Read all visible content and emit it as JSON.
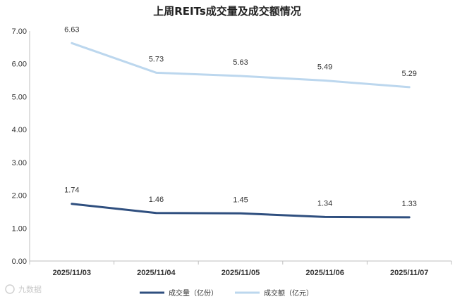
{
  "chart_data": {
    "type": "line",
    "title": "上周REITs成交量及成交额情况",
    "categories": [
      "2025/11/03",
      "2025/11/04",
      "2025/11/05",
      "2025/11/06",
      "2025/11/07"
    ],
    "series": [
      {
        "name": "成交量（亿份）",
        "values": [
          1.74,
          1.46,
          1.45,
          1.34,
          1.33
        ],
        "color": "#2f4f7f"
      },
      {
        "name": "成交额（亿元）",
        "values": [
          6.63,
          5.73,
          5.63,
          5.49,
          5.29
        ],
        "color": "#bcd7ee"
      }
    ],
    "y_ticks": [
      "0.00",
      "1.00",
      "2.00",
      "3.00",
      "4.00",
      "5.00",
      "6.00",
      "7.00"
    ],
    "ylim": [
      0,
      7
    ],
    "grid": false,
    "legend": "bottom"
  },
  "watermark": "九数据"
}
